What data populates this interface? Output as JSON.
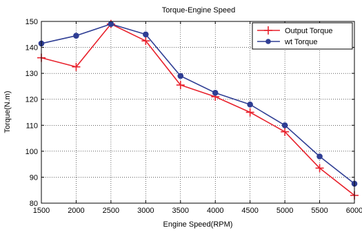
{
  "chart_data": {
    "type": "line",
    "title": "Torque-Engine Speed",
    "xlabel": "Engine Speed(RPM)",
    "ylabel": "Torque(N.m)",
    "x": [
      1500,
      2000,
      2500,
      3000,
      3500,
      4000,
      4500,
      5000,
      5500,
      6000
    ],
    "xlim": [
      1500,
      6000
    ],
    "ylim": [
      80,
      150
    ],
    "xticks": [
      "1500",
      "2000",
      "2500",
      "3000",
      "3500",
      "4000",
      "4500",
      "5000",
      "5500",
      "6000"
    ],
    "yticks": [
      "80",
      "90",
      "100",
      "110",
      "120",
      "130",
      "140",
      "150"
    ],
    "grid": true,
    "legend_position": "top-right",
    "series": [
      {
        "name": "Output Torque",
        "color": "#e8212c",
        "marker": "plus",
        "values": [
          136,
          132.5,
          149,
          142.5,
          125.5,
          121,
          115,
          107.5,
          93.5,
          83
        ]
      },
      {
        "name": "wt Torque",
        "color": "#2f3e94",
        "marker": "circle",
        "values": [
          141.5,
          144.5,
          149,
          145,
          129,
          122.5,
          118,
          110,
          98,
          87.5
        ]
      }
    ]
  }
}
